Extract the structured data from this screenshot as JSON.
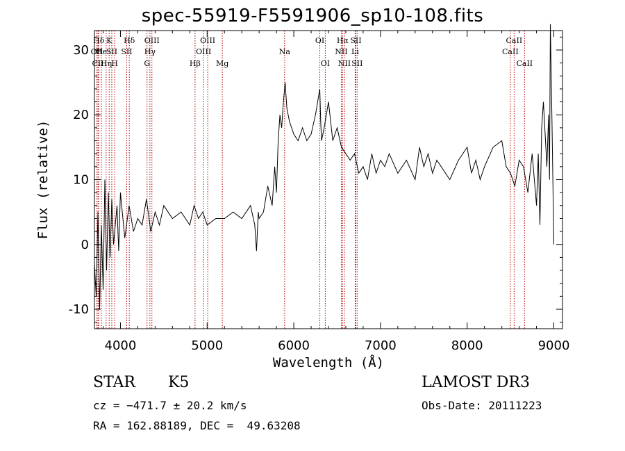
{
  "chart_data": {
    "type": "line",
    "title": "spec-55919-F5591906_sp10-108.fits",
    "xlabel": "Wavelength (Å)",
    "ylabel": "Flux (relative)",
    "xlim": [
      3700,
      9100
    ],
    "ylim": [
      -13,
      33
    ],
    "xticks": [
      4000,
      5000,
      6000,
      7000,
      8000,
      9000
    ],
    "yticks": [
      -10,
      0,
      10,
      20,
      30
    ],
    "grid": false,
    "series": [
      {
        "name": "flux",
        "color": "#000000",
        "x": [
          3700,
          3720,
          3740,
          3760,
          3780,
          3800,
          3820,
          3840,
          3860,
          3880,
          3900,
          3920,
          3940,
          3960,
          3980,
          4000,
          4050,
          4100,
          4150,
          4200,
          4250,
          4300,
          4350,
          4400,
          4450,
          4500,
          4600,
          4700,
          4800,
          4850,
          4900,
          4950,
          5000,
          5100,
          5200,
          5300,
          5400,
          5500,
          5550,
          5570,
          5590,
          5600,
          5650,
          5700,
          5750,
          5780,
          5800,
          5820,
          5840,
          5860,
          5880,
          5900,
          5920,
          5950,
          6000,
          6050,
          6100,
          6150,
          6200,
          6250,
          6300,
          6310,
          6320,
          6350,
          6400,
          6450,
          6500,
          6550,
          6600,
          6650,
          6700,
          6750,
          6800,
          6850,
          6900,
          6950,
          7000,
          7050,
          7100,
          7200,
          7300,
          7400,
          7450,
          7500,
          7550,
          7600,
          7650,
          7700,
          7800,
          7900,
          8000,
          8050,
          8100,
          8150,
          8200,
          8300,
          8400,
          8450,
          8500,
          8550,
          8600,
          8650,
          8700,
          8750,
          8800,
          8820,
          8840,
          8860,
          8880,
          8900,
          8920,
          8940,
          8950,
          8960,
          8980,
          9000
        ],
        "y": [
          -3,
          -8,
          5,
          -10,
          3,
          -7,
          10,
          -4,
          8,
          -2,
          7,
          0,
          3,
          6,
          -1,
          8,
          1,
          6,
          2,
          4,
          3,
          7,
          2,
          5,
          3,
          6,
          4,
          5,
          3,
          6,
          4,
          5,
          3,
          4,
          4,
          5,
          4,
          6,
          3,
          -1,
          5,
          4,
          5,
          9,
          6,
          12,
          8,
          16,
          20,
          18,
          22,
          25,
          21,
          19,
          17,
          16,
          18,
          16,
          17,
          20,
          24,
          19,
          16,
          18,
          22,
          16,
          18,
          15,
          14,
          13,
          14,
          11,
          12,
          10,
          14,
          11,
          13,
          12,
          14,
          11,
          13,
          10,
          15,
          12,
          14,
          11,
          13,
          12,
          10,
          13,
          15,
          11,
          13,
          10,
          12,
          15,
          16,
          12,
          11,
          9,
          13,
          12,
          8,
          14,
          6,
          14,
          3,
          18,
          22,
          17,
          12,
          20,
          10,
          34,
          18,
          0
        ]
      }
    ],
    "lines": [
      {
        "label": "Hδ",
        "x": 3750,
        "row": 1
      },
      {
        "label": "OII",
        "x": 3728,
        "row": 2
      },
      {
        "label": "CII",
        "x": 3740,
        "row": 3
      },
      {
        "label": "He",
        "x": 3780,
        "row": 2
      },
      {
        "label": "Hη",
        "x": 3835,
        "row": 3
      },
      {
        "label": "K",
        "x": 3870,
        "row": 1
      },
      {
        "label": "SII",
        "x": 3900,
        "row": 2
      },
      {
        "label": "H",
        "x": 3934,
        "row": 3
      },
      {
        "label": "Hδ",
        "x": 4102,
        "row": 1
      },
      {
        "label": "SII",
        "x": 4072,
        "row": 2
      },
      {
        "label": "OIII",
        "x": 4363,
        "row": 1
      },
      {
        "label": "Hγ",
        "x": 4340,
        "row": 2
      },
      {
        "label": "G",
        "x": 4307,
        "row": 3
      },
      {
        "label": "OIII",
        "x": 5007,
        "row": 1
      },
      {
        "label": "OIII",
        "x": 4959,
        "row": 2
      },
      {
        "label": "Hβ",
        "x": 4861,
        "row": 3
      },
      {
        "label": "Mg",
        "x": 5175,
        "row": 3
      },
      {
        "label": "Na",
        "x": 5894,
        "row": 2
      },
      {
        "label": "OI",
        "x": 6300,
        "row": 1
      },
      {
        "label": "OI",
        "x": 6363,
        "row": 3
      },
      {
        "label": "Hα",
        "x": 6563,
        "row": 1
      },
      {
        "label": "NII",
        "x": 6548,
        "row": 2
      },
      {
        "label": "NII",
        "x": 6584,
        "row": 3
      },
      {
        "label": "SII",
        "x": 6716,
        "row": 1
      },
      {
        "label": "Li",
        "x": 6708,
        "row": 2
      },
      {
        "label": "SII",
        "x": 6731,
        "row": 3
      },
      {
        "label": "CaII",
        "x": 8542,
        "row": 1
      },
      {
        "label": "CaII",
        "x": 8498,
        "row": 2
      },
      {
        "label": "CaII",
        "x": 8662,
        "row": 3
      }
    ]
  },
  "info": {
    "obj_class": "STAR",
    "subclass": "K5",
    "survey": "LAMOST DR3",
    "cz": "cz = −471.7 ± 20.2 km/s",
    "obs_date": "Obs-Date: 20111223",
    "coords": "RA = 162.88189, DEC =  49.63208"
  }
}
